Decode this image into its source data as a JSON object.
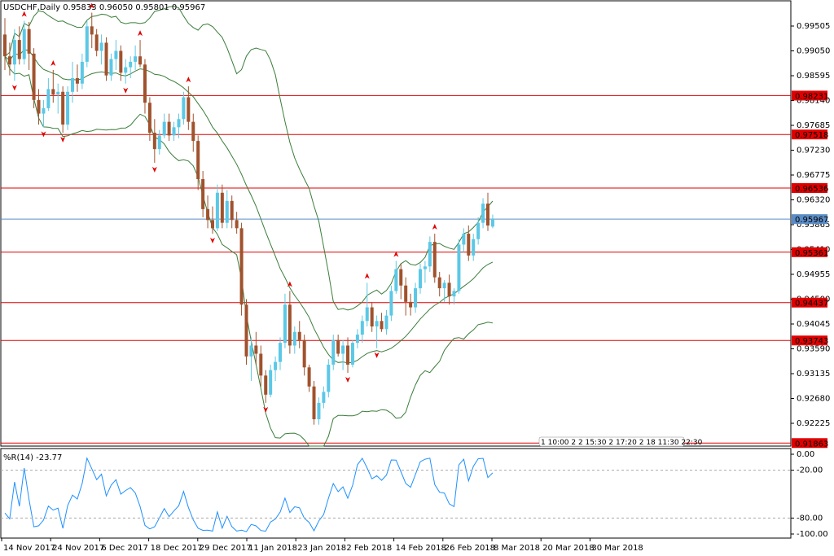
{
  "header": {
    "symbol_line": "USDCHF,Daily  0.95833 0.96050 0.95801 0.95967"
  },
  "indicator": {
    "label": "%R(14) -23.77",
    "levels": [
      "0.00",
      "-20.00",
      "-80.00",
      "-100.00"
    ]
  },
  "colors": {
    "bull": "#5bc8e6",
    "bear": "#a0522d",
    "band": "#3a7d3a",
    "hline": "#e00000",
    "current": "#5b8cc6",
    "wpr": "#1e90ff",
    "label_bg": "#e00000"
  },
  "chart_data": {
    "type": "candlestick",
    "price_axis_ticks": [
      "0.99505",
      "0.99050",
      "0.98595",
      "0.98140",
      "0.97685",
      "0.97230",
      "0.96775",
      "0.96320",
      "0.95865",
      "0.95410",
      "0.94955",
      "0.94500",
      "0.94045",
      "0.93590",
      "0.93135",
      "0.92680",
      "0.92225"
    ],
    "date_axis_ticks": [
      "14 Nov 2017",
      "24 Nov 2017",
      "6 Dec 2017",
      "18 Dec 2017",
      "29 Dec 2017",
      "11 Jan 2018",
      "23 Jan 2018",
      "2 Feb 2018",
      "14 Feb 2018",
      "26 Feb 2018",
      "8 Mar 2018",
      "20 Mar 2018",
      "30 Mar 2018"
    ],
    "horizontal_levels": [
      "0.98231",
      "0.97518",
      "0.96536",
      "0.95361",
      "0.94437",
      "0.93743",
      "0.91863"
    ],
    "current_price": "0.95967",
    "candles": [
      [
        0.9935,
        0.9965,
        0.987,
        0.9895
      ],
      [
        0.9895,
        0.992,
        0.986,
        0.988
      ],
      [
        0.988,
        0.9945,
        0.985,
        0.9925
      ],
      [
        0.9925,
        0.995,
        0.988,
        0.989
      ],
      [
        0.989,
        0.996,
        0.988,
        0.9945
      ],
      [
        0.9945,
        0.9958,
        0.987,
        0.99
      ],
      [
        0.99,
        0.991,
        0.98,
        0.9815
      ],
      [
        0.9815,
        0.9835,
        0.977,
        0.979
      ],
      [
        0.979,
        0.9815,
        0.9765,
        0.98
      ],
      [
        0.98,
        0.9855,
        0.9795,
        0.9835
      ],
      [
        0.9835,
        0.987,
        0.981,
        0.9825
      ],
      [
        0.9825,
        0.9845,
        0.979,
        0.983
      ],
      [
        0.983,
        0.984,
        0.9755,
        0.977
      ],
      [
        0.977,
        0.984,
        0.976,
        0.983
      ],
      [
        0.983,
        0.9885,
        0.981,
        0.9855
      ],
      [
        0.9855,
        0.988,
        0.983,
        0.9845
      ],
      [
        0.9845,
        0.99,
        0.9835,
        0.9885
      ],
      [
        0.9885,
        0.996,
        0.9875,
        0.995
      ],
      [
        0.995,
        0.9975,
        0.991,
        0.9935
      ],
      [
        0.9935,
        0.9945,
        0.9895,
        0.9905
      ],
      [
        0.9905,
        0.9935,
        0.988,
        0.992
      ],
      [
        0.992,
        0.993,
        0.985,
        0.986
      ],
      [
        0.986,
        0.99,
        0.985,
        0.989
      ],
      [
        0.989,
        0.9925,
        0.987,
        0.9905
      ],
      [
        0.9905,
        0.9915,
        0.985,
        0.9865
      ],
      [
        0.9865,
        0.989,
        0.9845,
        0.9875
      ],
      [
        0.9875,
        0.9895,
        0.9855,
        0.9885
      ],
      [
        0.9885,
        0.9915,
        0.987,
        0.9895
      ],
      [
        0.9895,
        0.9925,
        0.9875,
        0.988
      ],
      [
        0.988,
        0.989,
        0.979,
        0.981
      ],
      [
        0.981,
        0.982,
        0.974,
        0.9755
      ],
      [
        0.9755,
        0.978,
        0.97,
        0.9725
      ],
      [
        0.9725,
        0.976,
        0.9715,
        0.975
      ],
      [
        0.975,
        0.979,
        0.9745,
        0.9775
      ],
      [
        0.9775,
        0.979,
        0.974,
        0.975
      ],
      [
        0.975,
        0.9775,
        0.974,
        0.9765
      ],
      [
        0.9765,
        0.979,
        0.9745,
        0.978
      ],
      [
        0.978,
        0.983,
        0.977,
        0.982
      ],
      [
        0.982,
        0.984,
        0.976,
        0.9775
      ],
      [
        0.9775,
        0.979,
        0.972,
        0.974
      ],
      [
        0.974,
        0.975,
        0.965,
        0.967
      ],
      [
        0.967,
        0.9685,
        0.96,
        0.9615
      ],
      [
        0.9615,
        0.964,
        0.958,
        0.9595
      ],
      [
        0.9595,
        0.962,
        0.957,
        0.958
      ],
      [
        0.958,
        0.966,
        0.9575,
        0.9645
      ],
      [
        0.9645,
        0.966,
        0.958,
        0.959
      ],
      [
        0.959,
        0.965,
        0.958,
        0.963
      ],
      [
        0.963,
        0.964,
        0.958,
        0.9595
      ],
      [
        0.9595,
        0.961,
        0.957,
        0.958
      ],
      [
        0.958,
        0.959,
        0.942,
        0.944
      ],
      [
        0.944,
        0.945,
        0.933,
        0.9345
      ],
      [
        0.9345,
        0.938,
        0.93,
        0.9365
      ],
      [
        0.9365,
        0.939,
        0.933,
        0.935
      ],
      [
        0.935,
        0.9365,
        0.929,
        0.931
      ],
      [
        0.931,
        0.932,
        0.926,
        0.9275
      ],
      [
        0.9275,
        0.933,
        0.927,
        0.932
      ],
      [
        0.932,
        0.9345,
        0.93,
        0.9335
      ],
      [
        0.9335,
        0.938,
        0.932,
        0.937
      ],
      [
        0.937,
        0.946,
        0.936,
        0.944
      ],
      [
        0.944,
        0.9465,
        0.935,
        0.9365
      ],
      [
        0.9365,
        0.94,
        0.935,
        0.939
      ],
      [
        0.939,
        0.941,
        0.936,
        0.9375
      ],
      [
        0.9375,
        0.9385,
        0.931,
        0.9325
      ],
      [
        0.9325,
        0.933,
        0.928,
        0.929
      ],
      [
        0.929,
        0.93,
        0.922,
        0.923
      ],
      [
        0.923,
        0.927,
        0.922,
        0.926
      ],
      [
        0.926,
        0.929,
        0.925,
        0.928
      ],
      [
        0.928,
        0.934,
        0.927,
        0.933
      ],
      [
        0.933,
        0.9385,
        0.932,
        0.9375
      ],
      [
        0.9375,
        0.9385,
        0.9345,
        0.935
      ],
      [
        0.935,
        0.9375,
        0.932,
        0.9365
      ],
      [
        0.9365,
        0.938,
        0.9315,
        0.933
      ],
      [
        0.933,
        0.9375,
        0.9325,
        0.937
      ],
      [
        0.937,
        0.9395,
        0.936,
        0.9385
      ],
      [
        0.9385,
        0.942,
        0.937,
        0.941
      ],
      [
        0.941,
        0.948,
        0.94,
        0.9435
      ],
      [
        0.9435,
        0.9445,
        0.939,
        0.94
      ],
      [
        0.94,
        0.942,
        0.936,
        0.941
      ],
      [
        0.941,
        0.9425,
        0.939,
        0.9395
      ],
      [
        0.9395,
        0.943,
        0.9385,
        0.942
      ],
      [
        0.942,
        0.9475,
        0.941,
        0.9465
      ],
      [
        0.9465,
        0.952,
        0.946,
        0.9505
      ],
      [
        0.9505,
        0.9515,
        0.945,
        0.9475
      ],
      [
        0.9475,
        0.949,
        0.942,
        0.9445
      ],
      [
        0.9445,
        0.946,
        0.942,
        0.9435
      ],
      [
        0.9435,
        0.948,
        0.9425,
        0.947
      ],
      [
        0.947,
        0.9515,
        0.946,
        0.9505
      ],
      [
        0.9505,
        0.952,
        0.948,
        0.951
      ],
      [
        0.951,
        0.9565,
        0.95,
        0.9555
      ],
      [
        0.9555,
        0.957,
        0.948,
        0.949
      ],
      [
        0.949,
        0.95,
        0.9455,
        0.947
      ],
      [
        0.947,
        0.9485,
        0.9445,
        0.948
      ],
      [
        0.948,
        0.9495,
        0.944,
        0.9455
      ],
      [
        0.9455,
        0.947,
        0.944,
        0.9465
      ],
      [
        0.9465,
        0.956,
        0.946,
        0.955
      ],
      [
        0.955,
        0.958,
        0.9535,
        0.957
      ],
      [
        0.957,
        0.9585,
        0.952,
        0.953
      ],
      [
        0.953,
        0.957,
        0.952,
        0.956
      ],
      [
        0.956,
        0.96,
        0.955,
        0.959
      ],
      [
        0.959,
        0.9635,
        0.958,
        0.9625
      ],
      [
        0.9625,
        0.9645,
        0.9575,
        0.9585
      ],
      [
        0.9583,
        0.9605,
        0.958,
        0.9597
      ]
    ]
  }
}
